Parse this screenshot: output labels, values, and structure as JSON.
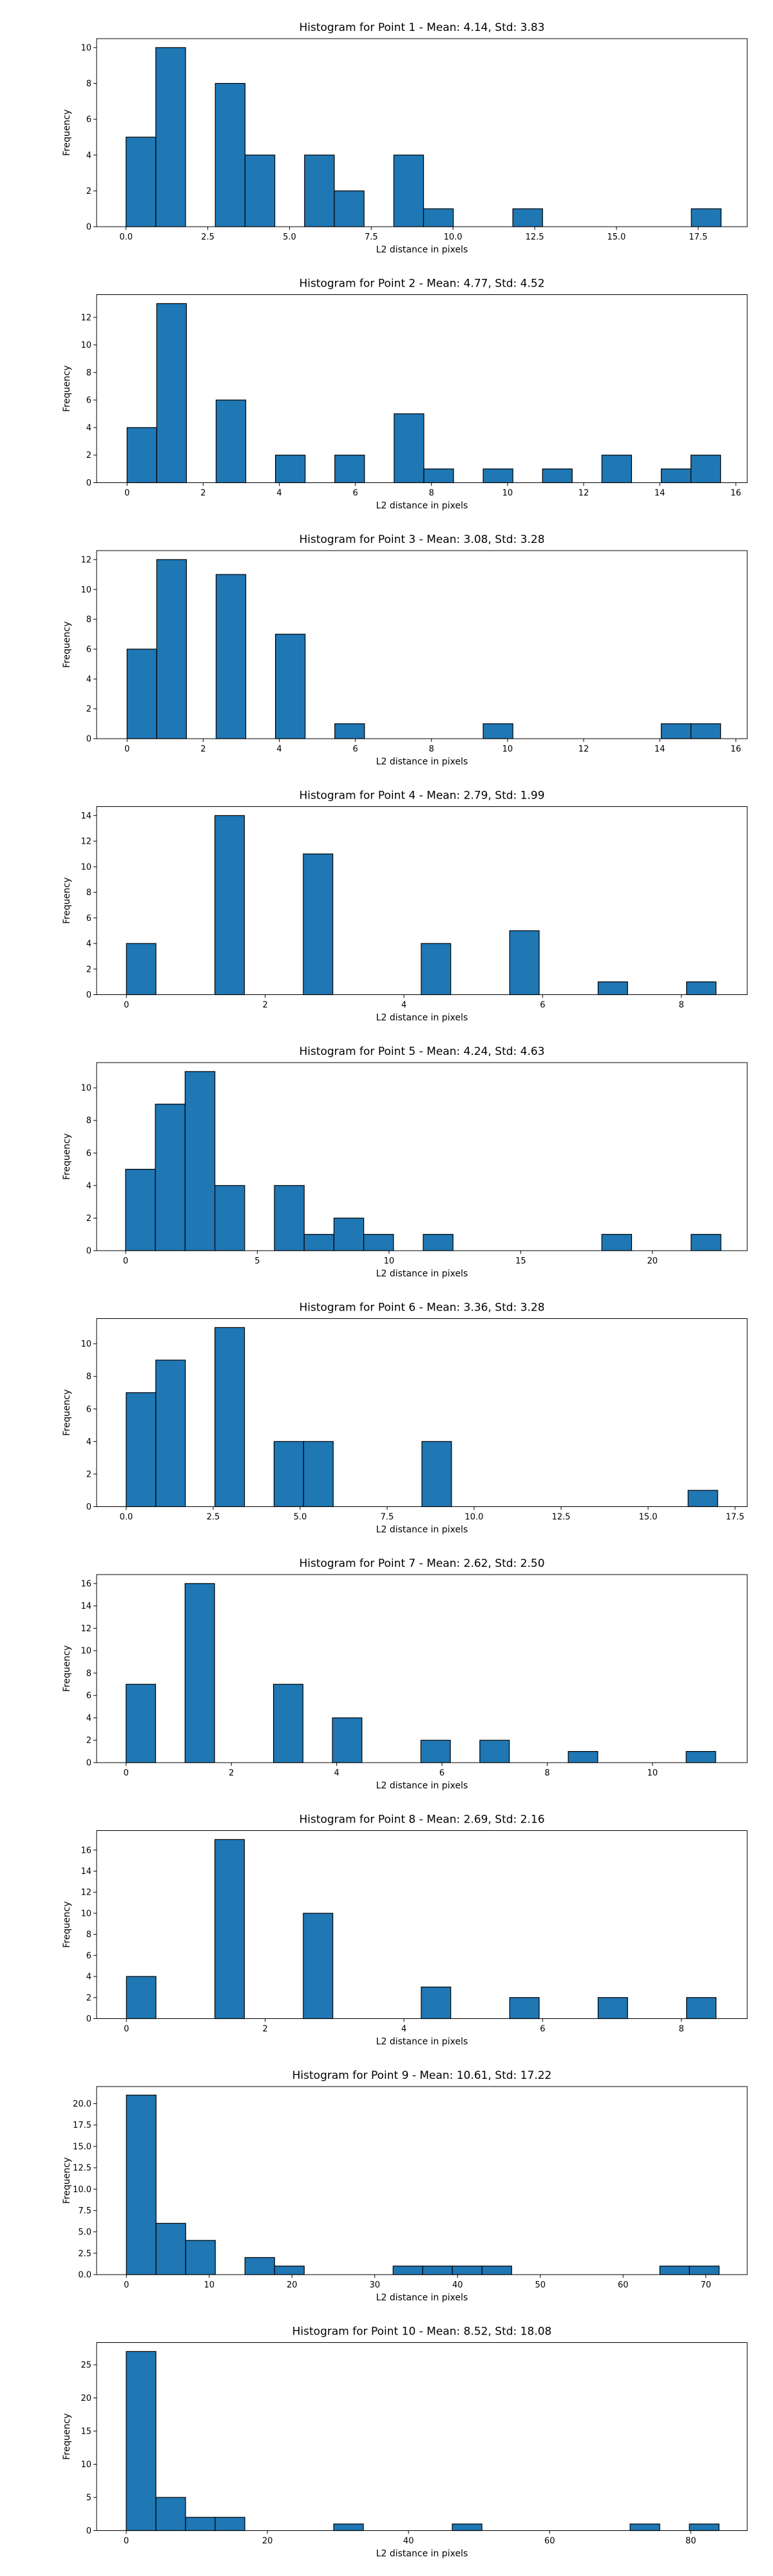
{
  "chart_data": [
    {
      "type": "bar",
      "title": "Histogram for Point 1 - Mean: 4.14, Std: 3.83",
      "xlabel": "L2 distance in pixels",
      "ylabel": "Frequency",
      "xlim": [
        -0.9,
        19.0
      ],
      "ylim": [
        0,
        10.5
      ],
      "xticks": [
        0.0,
        2.5,
        5.0,
        7.5,
        10.0,
        12.5,
        15.0,
        17.5
      ],
      "xtick_labels": [
        "0.0",
        "2.5",
        "5.0",
        "7.5",
        "10.0",
        "12.5",
        "15.0",
        "17.5"
      ],
      "yticks": [
        0,
        2,
        4,
        6,
        8,
        10
      ],
      "ytick_labels": [
        "0",
        "2",
        "4",
        "6",
        "8",
        "10"
      ],
      "bars": [
        {
          "x0": 0.0,
          "x1": 0.91,
          "value": 5
        },
        {
          "x0": 0.91,
          "x1": 1.82,
          "value": 10
        },
        {
          "x0": 2.73,
          "x1": 3.64,
          "value": 8
        },
        {
          "x0": 3.64,
          "x1": 4.55,
          "value": 4
        },
        {
          "x0": 5.46,
          "x1": 6.37,
          "value": 4
        },
        {
          "x0": 6.37,
          "x1": 7.28,
          "value": 2
        },
        {
          "x0": 8.19,
          "x1": 9.1,
          "value": 4
        },
        {
          "x0": 9.1,
          "x1": 10.01,
          "value": 1
        },
        {
          "x0": 11.83,
          "x1": 12.74,
          "value": 1
        },
        {
          "x0": 17.29,
          "x1": 18.2,
          "value": 1
        }
      ]
    },
    {
      "type": "bar",
      "title": "Histogram for Point 2 - Mean: 4.77, Std: 4.52",
      "xlabel": "L2 distance in pixels",
      "ylabel": "Frequency",
      "xlim": [
        -0.8,
        16.3
      ],
      "ylim": [
        0,
        13.65
      ],
      "xticks": [
        0,
        2,
        4,
        6,
        8,
        10,
        12,
        14,
        16
      ],
      "xtick_labels": [
        "0",
        "2",
        "4",
        "6",
        "8",
        "10",
        "12",
        "14",
        "16"
      ],
      "yticks": [
        0,
        2,
        4,
        6,
        8,
        10,
        12
      ],
      "ytick_labels": [
        "0",
        "2",
        "4",
        "6",
        "8",
        "10",
        "12"
      ],
      "bars": [
        {
          "x0": 0.0,
          "x1": 0.78,
          "value": 4
        },
        {
          "x0": 0.78,
          "x1": 1.56,
          "value": 13
        },
        {
          "x0": 2.34,
          "x1": 3.12,
          "value": 6
        },
        {
          "x0": 3.9,
          "x1": 4.68,
          "value": 2
        },
        {
          "x0": 5.46,
          "x1": 6.24,
          "value": 2
        },
        {
          "x0": 7.02,
          "x1": 7.8,
          "value": 5
        },
        {
          "x0": 7.8,
          "x1": 8.58,
          "value": 1
        },
        {
          "x0": 9.36,
          "x1": 10.14,
          "value": 1
        },
        {
          "x0": 10.92,
          "x1": 11.7,
          "value": 1
        },
        {
          "x0": 12.48,
          "x1": 13.26,
          "value": 2
        },
        {
          "x0": 14.04,
          "x1": 14.82,
          "value": 1
        },
        {
          "x0": 14.82,
          "x1": 15.6,
          "value": 2
        }
      ]
    },
    {
      "type": "bar",
      "title": "Histogram for Point 3 - Mean: 3.08, Std: 3.28",
      "xlabel": "L2 distance in pixels",
      "ylabel": "Frequency",
      "xlim": [
        -0.8,
        16.3
      ],
      "ylim": [
        0,
        12.6
      ],
      "xticks": [
        0,
        2,
        4,
        6,
        8,
        10,
        12,
        14,
        16
      ],
      "xtick_labels": [
        "0",
        "2",
        "4",
        "6",
        "8",
        "10",
        "12",
        "14",
        "16"
      ],
      "yticks": [
        0,
        2,
        4,
        6,
        8,
        10,
        12
      ],
      "ytick_labels": [
        "0",
        "2",
        "4",
        "6",
        "8",
        "10",
        "12"
      ],
      "bars": [
        {
          "x0": 0.0,
          "x1": 0.78,
          "value": 6
        },
        {
          "x0": 0.78,
          "x1": 1.56,
          "value": 12
        },
        {
          "x0": 2.34,
          "x1": 3.12,
          "value": 11
        },
        {
          "x0": 3.9,
          "x1": 4.68,
          "value": 7
        },
        {
          "x0": 5.46,
          "x1": 6.24,
          "value": 1
        },
        {
          "x0": 9.36,
          "x1": 10.14,
          "value": 1
        },
        {
          "x0": 14.04,
          "x1": 14.82,
          "value": 1
        },
        {
          "x0": 14.82,
          "x1": 15.6,
          "value": 1
        }
      ]
    },
    {
      "type": "bar",
      "title": "Histogram for Point 4 - Mean: 2.79, Std: 1.99",
      "xlabel": "L2 distance in pixels",
      "ylabel": "Frequency",
      "xlim": [
        -0.43,
        8.95
      ],
      "ylim": [
        0,
        14.7
      ],
      "xticks": [
        0,
        2,
        4,
        6,
        8
      ],
      "xtick_labels": [
        "0",
        "2",
        "4",
        "6",
        "8"
      ],
      "yticks": [
        0,
        2,
        4,
        6,
        8,
        10,
        12,
        14
      ],
      "ytick_labels": [
        "0",
        "2",
        "4",
        "6",
        "8",
        "10",
        "12",
        "14"
      ],
      "bars": [
        {
          "x0": 0.0,
          "x1": 0.425,
          "value": 4
        },
        {
          "x0": 1.275,
          "x1": 1.7,
          "value": 14
        },
        {
          "x0": 2.55,
          "x1": 2.975,
          "value": 11
        },
        {
          "x0": 4.25,
          "x1": 4.675,
          "value": 4
        },
        {
          "x0": 5.525,
          "x1": 5.95,
          "value": 5
        },
        {
          "x0": 6.8,
          "x1": 7.225,
          "value": 1
        },
        {
          "x0": 8.075,
          "x1": 8.5,
          "value": 1
        }
      ]
    },
    {
      "type": "bar",
      "title": "Histogram for Point 5 - Mean: 4.24, Std: 4.63",
      "xlabel": "L2 distance in pixels",
      "ylabel": "Frequency",
      "xlim": [
        -1.1,
        23.6
      ],
      "ylim": [
        0,
        11.55
      ],
      "xticks": [
        0,
        5,
        10,
        15,
        20
      ],
      "xtick_labels": [
        "0",
        "5",
        "10",
        "15",
        "20"
      ],
      "yticks": [
        0,
        2,
        4,
        6,
        8,
        10
      ],
      "ytick_labels": [
        "0",
        "2",
        "4",
        "6",
        "8",
        "10"
      ],
      "bars": [
        {
          "x0": 0.0,
          "x1": 1.13,
          "value": 5
        },
        {
          "x0": 1.13,
          "x1": 2.26,
          "value": 9
        },
        {
          "x0": 2.26,
          "x1": 3.39,
          "value": 11
        },
        {
          "x0": 3.39,
          "x1": 4.52,
          "value": 4
        },
        {
          "x0": 5.65,
          "x1": 6.78,
          "value": 4
        },
        {
          "x0": 6.78,
          "x1": 7.91,
          "value": 1
        },
        {
          "x0": 7.91,
          "x1": 9.04,
          "value": 2
        },
        {
          "x0": 9.04,
          "x1": 10.17,
          "value": 1
        },
        {
          "x0": 11.3,
          "x1": 12.43,
          "value": 1
        },
        {
          "x0": 18.08,
          "x1": 19.21,
          "value": 1
        },
        {
          "x0": 21.47,
          "x1": 22.6,
          "value": 1
        }
      ]
    },
    {
      "type": "bar",
      "title": "Histogram for Point 6 - Mean: 3.36, Std: 3.28",
      "xlabel": "L2 distance in pixels",
      "ylabel": "Frequency",
      "xlim": [
        -0.85,
        17.85
      ],
      "ylim": [
        0,
        11.55
      ],
      "xticks": [
        0.0,
        2.5,
        5.0,
        7.5,
        10.0,
        12.5,
        15.0,
        17.5
      ],
      "xtick_labels": [
        "0.0",
        "2.5",
        "5.0",
        "7.5",
        "10.0",
        "12.5",
        "15.0",
        "17.5"
      ],
      "yticks": [
        0,
        2,
        4,
        6,
        8,
        10
      ],
      "ytick_labels": [
        "0",
        "2",
        "4",
        "6",
        "8",
        "10"
      ],
      "bars": [
        {
          "x0": 0.0,
          "x1": 0.85,
          "value": 7
        },
        {
          "x0": 0.85,
          "x1": 1.7,
          "value": 9
        },
        {
          "x0": 2.55,
          "x1": 3.4,
          "value": 11
        },
        {
          "x0": 4.25,
          "x1": 5.1,
          "value": 4
        },
        {
          "x0": 5.1,
          "x1": 5.95,
          "value": 4
        },
        {
          "x0": 8.5,
          "x1": 9.35,
          "value": 4
        },
        {
          "x0": 16.15,
          "x1": 17.0,
          "value": 1
        }
      ]
    },
    {
      "type": "bar",
      "title": "Histogram for Point 7 - Mean: 2.62, Std: 2.50",
      "xlabel": "L2 distance in pixels",
      "ylabel": "Frequency",
      "xlim": [
        -0.56,
        11.8
      ],
      "ylim": [
        0,
        16.8
      ],
      "xticks": [
        0,
        2,
        4,
        6,
        8,
        10
      ],
      "xtick_labels": [
        "0",
        "2",
        "4",
        "6",
        "8",
        "10"
      ],
      "yticks": [
        0,
        2,
        4,
        6,
        8,
        10,
        12,
        14,
        16
      ],
      "ytick_labels": [
        "0",
        "2",
        "4",
        "6",
        "8",
        "10",
        "12",
        "14",
        "16"
      ],
      "bars": [
        {
          "x0": 0.0,
          "x1": 0.56,
          "value": 7
        },
        {
          "x0": 1.12,
          "x1": 1.68,
          "value": 16
        },
        {
          "x0": 2.8,
          "x1": 3.36,
          "value": 7
        },
        {
          "x0": 3.92,
          "x1": 4.48,
          "value": 4
        },
        {
          "x0": 5.6,
          "x1": 6.16,
          "value": 2
        },
        {
          "x0": 6.72,
          "x1": 7.28,
          "value": 2
        },
        {
          "x0": 8.4,
          "x1": 8.96,
          "value": 1
        },
        {
          "x0": 10.64,
          "x1": 11.2,
          "value": 1
        }
      ]
    },
    {
      "type": "bar",
      "title": "Histogram for Point 8 - Mean: 2.69, Std: 2.16",
      "xlabel": "L2 distance in pixels",
      "ylabel": "Frequency",
      "xlim": [
        -0.43,
        8.95
      ],
      "ylim": [
        0,
        17.85
      ],
      "xticks": [
        0,
        2,
        4,
        6,
        8
      ],
      "xtick_labels": [
        "0",
        "2",
        "4",
        "6",
        "8"
      ],
      "yticks": [
        0,
        2,
        4,
        6,
        8,
        10,
        12,
        14,
        16
      ],
      "ytick_labels": [
        "0",
        "2",
        "4",
        "6",
        "8",
        "10",
        "12",
        "14",
        "16"
      ],
      "bars": [
        {
          "x0": 0.0,
          "x1": 0.425,
          "value": 4
        },
        {
          "x0": 1.275,
          "x1": 1.7,
          "value": 17
        },
        {
          "x0": 2.55,
          "x1": 2.975,
          "value": 10
        },
        {
          "x0": 4.25,
          "x1": 4.675,
          "value": 3
        },
        {
          "x0": 5.525,
          "x1": 5.95,
          "value": 2
        },
        {
          "x0": 6.8,
          "x1": 7.225,
          "value": 2
        },
        {
          "x0": 8.075,
          "x1": 8.5,
          "value": 2
        }
      ]
    },
    {
      "type": "bar",
      "title": "Histogram for Point 9 - Mean: 10.61, Std: 17.22",
      "xlabel": "L2 distance in pixels",
      "ylabel": "Frequency",
      "xlim": [
        -3.6,
        75.0
      ],
      "ylim": [
        0,
        22.0
      ],
      "xticks": [
        0,
        10,
        20,
        30,
        40,
        50,
        60,
        70
      ],
      "xtick_labels": [
        "0",
        "10",
        "20",
        "30",
        "40",
        "50",
        "60",
        "70"
      ],
      "yticks": [
        0,
        2.5,
        5.0,
        7.5,
        10.0,
        12.5,
        15.0,
        17.5,
        20.0
      ],
      "ytick_labels": [
        "0.0",
        "2.5",
        "5.0",
        "7.5",
        "10.0",
        "12.5",
        "15.0",
        "17.5",
        "20.0"
      ],
      "bars": [
        {
          "x0": 0.0,
          "x1": 3.58,
          "value": 21
        },
        {
          "x0": 3.58,
          "x1": 7.16,
          "value": 6
        },
        {
          "x0": 7.16,
          "x1": 10.74,
          "value": 4
        },
        {
          "x0": 14.32,
          "x1": 17.9,
          "value": 2
        },
        {
          "x0": 17.9,
          "x1": 21.48,
          "value": 1
        },
        {
          "x0": 32.22,
          "x1": 35.8,
          "value": 1
        },
        {
          "x0": 35.8,
          "x1": 39.38,
          "value": 1
        },
        {
          "x0": 39.38,
          "x1": 42.96,
          "value": 1
        },
        {
          "x0": 42.96,
          "x1": 46.54,
          "value": 1
        },
        {
          "x0": 64.44,
          "x1": 68.02,
          "value": 1
        },
        {
          "x0": 68.02,
          "x1": 71.6,
          "value": 1
        }
      ]
    },
    {
      "type": "bar",
      "title": "Histogram for Point 10 - Mean: 8.52, Std: 18.08",
      "xlabel": "L2 distance in pixels",
      "ylabel": "Frequency",
      "xlim": [
        -4.2,
        88.0
      ],
      "ylim": [
        0,
        28.35
      ],
      "xticks": [
        0,
        20,
        40,
        60,
        80
      ],
      "xtick_labels": [
        "0",
        "20",
        "40",
        "60",
        "80"
      ],
      "yticks": [
        0,
        5,
        10,
        15,
        20,
        25
      ],
      "ytick_labels": [
        "0",
        "5",
        "10",
        "15",
        "20",
        "25"
      ],
      "bars": [
        {
          "x0": 0.0,
          "x1": 4.2,
          "value": 27
        },
        {
          "x0": 4.2,
          "x1": 8.4,
          "value": 5
        },
        {
          "x0": 8.4,
          "x1": 12.6,
          "value": 2
        },
        {
          "x0": 12.6,
          "x1": 16.8,
          "value": 2
        },
        {
          "x0": 29.4,
          "x1": 33.6,
          "value": 1
        },
        {
          "x0": 46.2,
          "x1": 50.4,
          "value": 1
        },
        {
          "x0": 71.4,
          "x1": 75.6,
          "value": 1
        },
        {
          "x0": 79.8,
          "x1": 84.0,
          "value": 1
        }
      ]
    }
  ]
}
